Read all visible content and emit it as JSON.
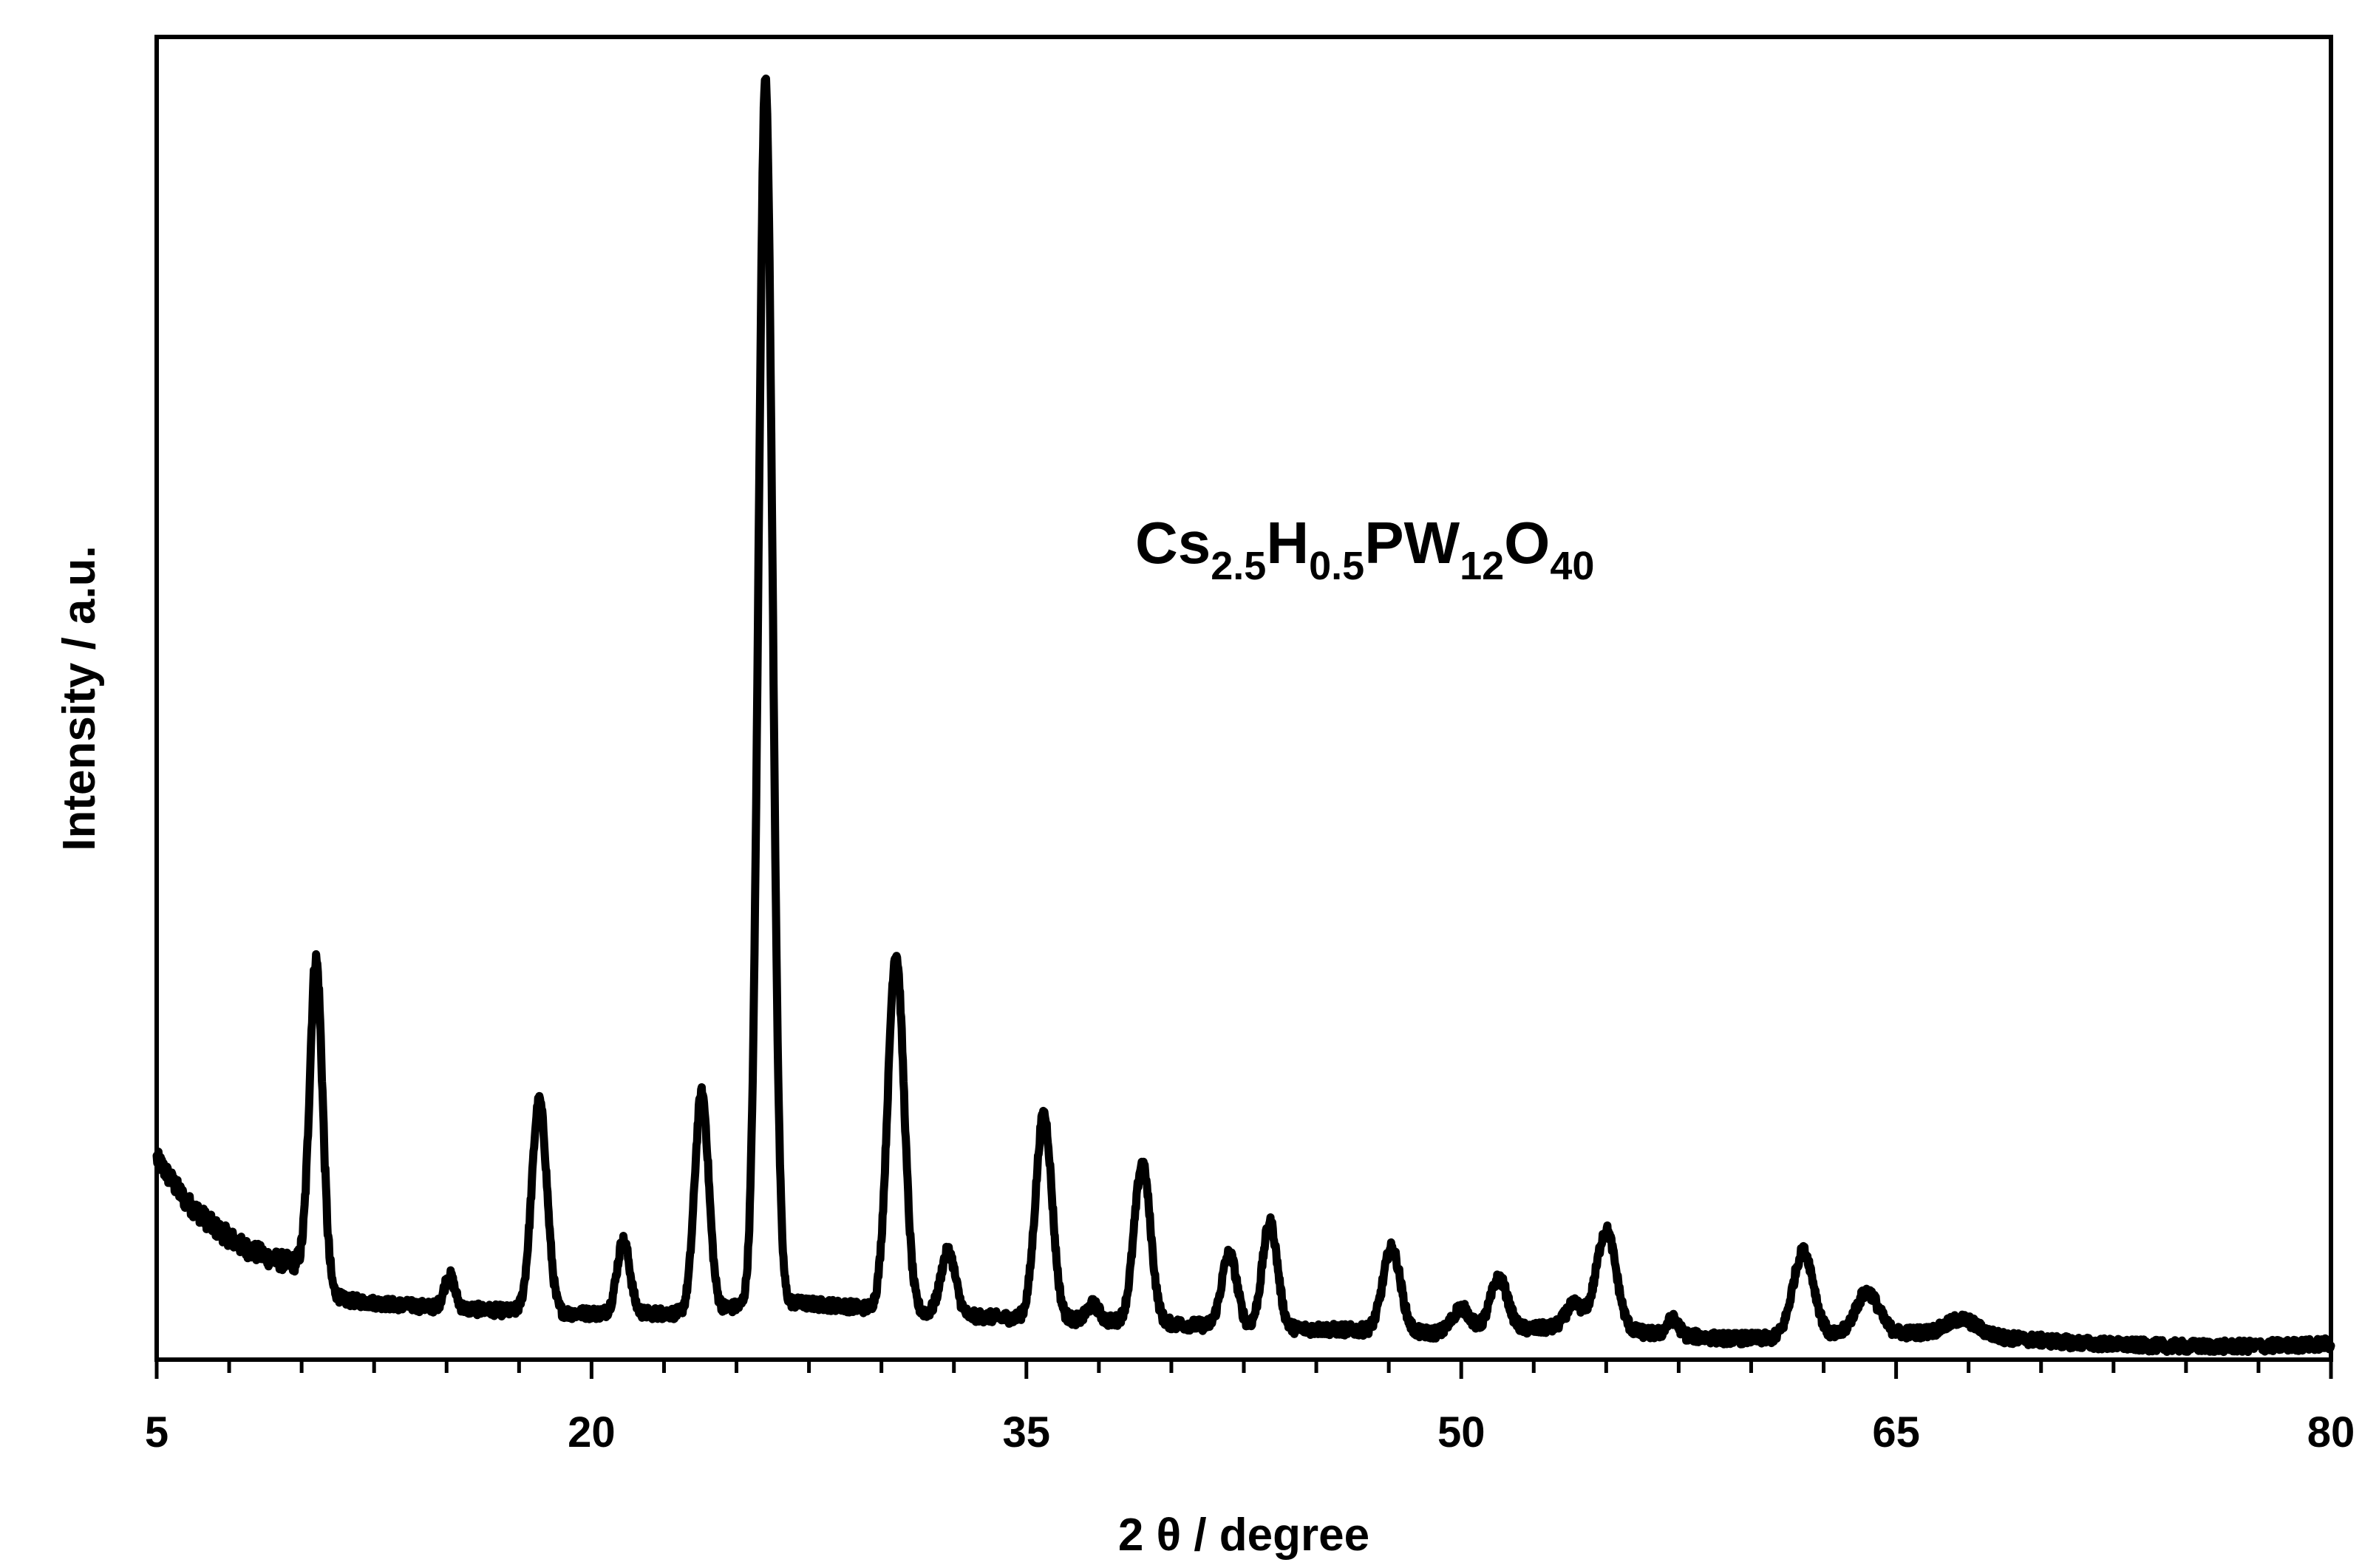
{
  "chart_data": {
    "type": "line",
    "title": "",
    "xlabel": "2 θ / degree",
    "ylabel": "Intensity / a.u.",
    "xlim": [
      5,
      80
    ],
    "ylim": [
      0,
      100
    ],
    "x_ticks": [
      5,
      20,
      35,
      50,
      65,
      80
    ],
    "x_minor_step": 2.5,
    "y_ticks": [],
    "grid": false,
    "legend": "none",
    "line_color": "#000000",
    "annotation": {
      "base1": "Cs",
      "sub1": "2.5",
      "base2": "H",
      "sub2": "0.5",
      "base3": "PW",
      "sub3": "12",
      "base4": "O",
      "sub4": "40"
    },
    "series": [
      {
        "baseline": [
          [
            5,
            15.2
          ],
          [
            6,
            12.0
          ],
          [
            7,
            10.0
          ],
          [
            8,
            8.5
          ],
          [
            9,
            7.6
          ],
          [
            9.9,
            7.2
          ],
          [
            10.6,
            5.5
          ],
          [
            11.5,
            4.5
          ],
          [
            13,
            4.2
          ],
          [
            15,
            3.9
          ],
          [
            17,
            3.7
          ],
          [
            19,
            3.5
          ],
          [
            21,
            3.5
          ],
          [
            23,
            3.5
          ],
          [
            25,
            4.0
          ],
          [
            27,
            4.3
          ],
          [
            29,
            4.0
          ],
          [
            31,
            3.6
          ],
          [
            33,
            3.3
          ],
          [
            35,
            3.1
          ],
          [
            37,
            3.0
          ],
          [
            39,
            2.8
          ],
          [
            41,
            2.6
          ],
          [
            43,
            2.4
          ],
          [
            45,
            2.3
          ],
          [
            47,
            2.2
          ],
          [
            49,
            2.0
          ],
          [
            51,
            2.2
          ],
          [
            53,
            2.4
          ],
          [
            55,
            2.3
          ],
          [
            57,
            1.9
          ],
          [
            59,
            1.6
          ],
          [
            61,
            1.6
          ],
          [
            63,
            1.8
          ],
          [
            65,
            2.0
          ],
          [
            67,
            2.1
          ],
          [
            69,
            1.6
          ],
          [
            71,
            1.3
          ],
          [
            73,
            1.1
          ],
          [
            75,
            1.0
          ],
          [
            77,
            1.0
          ],
          [
            79,
            1.1
          ],
          [
            80,
            1.2
          ]
        ],
        "peaks": [
          [
            10.5,
            24.5,
            0.22
          ],
          [
            15.1,
            2.5,
            0.18
          ],
          [
            18.2,
            16.0,
            0.26
          ],
          [
            21.1,
            5.5,
            0.22
          ],
          [
            23.8,
            16.5,
            0.24
          ],
          [
            26.0,
            93.0,
            0.24
          ],
          [
            30.5,
            27.0,
            0.28
          ],
          [
            32.3,
            4.8,
            0.25
          ],
          [
            35.6,
            15.5,
            0.28
          ],
          [
            37.3,
            1.2,
            0.2
          ],
          [
            39.0,
            12.0,
            0.28
          ],
          [
            42.0,
            5.5,
            0.26
          ],
          [
            43.4,
            8.0,
            0.26
          ],
          [
            47.6,
            6.3,
            0.3
          ],
          [
            50.0,
            1.8,
            0.3
          ],
          [
            51.3,
            3.9,
            0.3
          ],
          [
            53.9,
            1.8,
            0.3
          ],
          [
            55.0,
            7.5,
            0.34
          ],
          [
            57.3,
            1.2,
            0.2
          ],
          [
            61.8,
            6.5,
            0.36
          ],
          [
            64.0,
            3.2,
            0.4
          ],
          [
            67.3,
            1.0,
            0.5
          ]
        ],
        "noise_amplitude": 0.45
      }
    ]
  }
}
